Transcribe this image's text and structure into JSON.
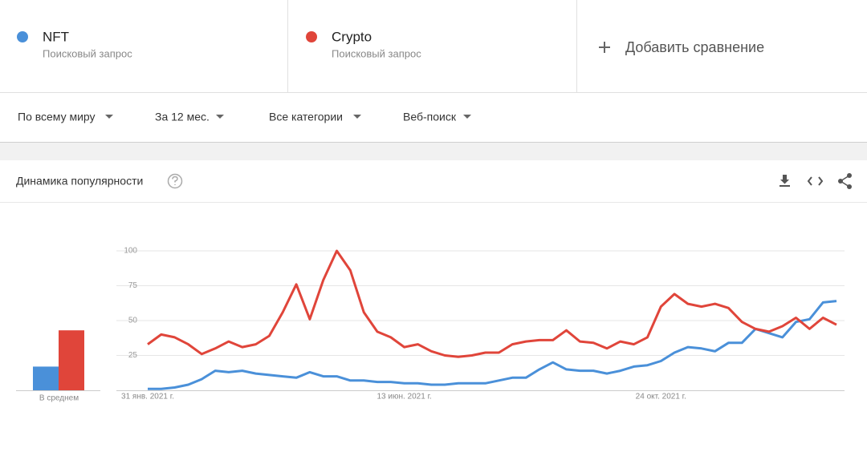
{
  "header": {
    "term_subtitles": [
      "Поисковый запрос",
      "Поисковый запрос"
    ],
    "add_compare": "Добавить сравнение"
  },
  "filters": [
    "По всему миру",
    "За 12 мес.",
    "Все категории",
    "Веб-поиск"
  ],
  "card_title": "Динамика популярности",
  "chart_data": [
    {
      "type": "bar",
      "categories": [
        "В среднем"
      ],
      "series": [
        {
          "color": "#4a90d9",
          "values": [
            17
          ]
        },
        {
          "color": "#e0453a",
          "values": [
            43
          ]
        }
      ],
      "ylim": [
        0,
        100
      ]
    },
    {
      "type": "line",
      "categories": [
        "31 янв. 2021 г.",
        null,
        null,
        null,
        null,
        null,
        null,
        null,
        null,
        null,
        null,
        null,
        null,
        null,
        null,
        null,
        null,
        null,
        null,
        "13 июн. 2021 г.",
        null,
        null,
        null,
        null,
        null,
        null,
        null,
        null,
        null,
        null,
        null,
        null,
        null,
        null,
        null,
        null,
        null,
        null,
        "24 окт. 2021 г.",
        null,
        null,
        null,
        null,
        null,
        null,
        null,
        null,
        null,
        null,
        null,
        null,
        null
      ],
      "series": [
        {
          "name": "NFT",
          "color": "#4a90d9",
          "values": [
            1,
            1,
            2,
            4,
            8,
            14,
            13,
            14,
            12,
            11,
            10,
            9,
            13,
            10,
            10,
            7,
            7,
            6,
            6,
            5,
            5,
            4,
            4,
            5,
            5,
            5,
            7,
            9,
            9,
            15,
            20,
            15,
            14,
            14,
            12,
            14,
            17,
            18,
            21,
            27,
            31,
            30,
            28,
            34,
            34,
            44,
            41,
            38,
            49,
            51,
            63,
            64
          ]
        },
        {
          "name": "Crypto",
          "color": "#e0453a",
          "values": [
            33,
            40,
            38,
            33,
            26,
            30,
            35,
            31,
            33,
            39,
            56,
            76,
            51,
            79,
            100,
            86,
            56,
            42,
            38,
            31,
            33,
            28,
            25,
            24,
            25,
            27,
            27,
            33,
            35,
            36,
            36,
            43,
            35,
            34,
            30,
            35,
            33,
            38,
            60,
            69,
            62,
            60,
            62,
            59,
            49,
            44,
            42,
            46,
            52,
            44,
            52,
            47
          ]
        }
      ],
      "ylim": [
        0,
        100
      ],
      "yticks": [
        25,
        50,
        75,
        100
      ],
      "grid": true
    }
  ]
}
